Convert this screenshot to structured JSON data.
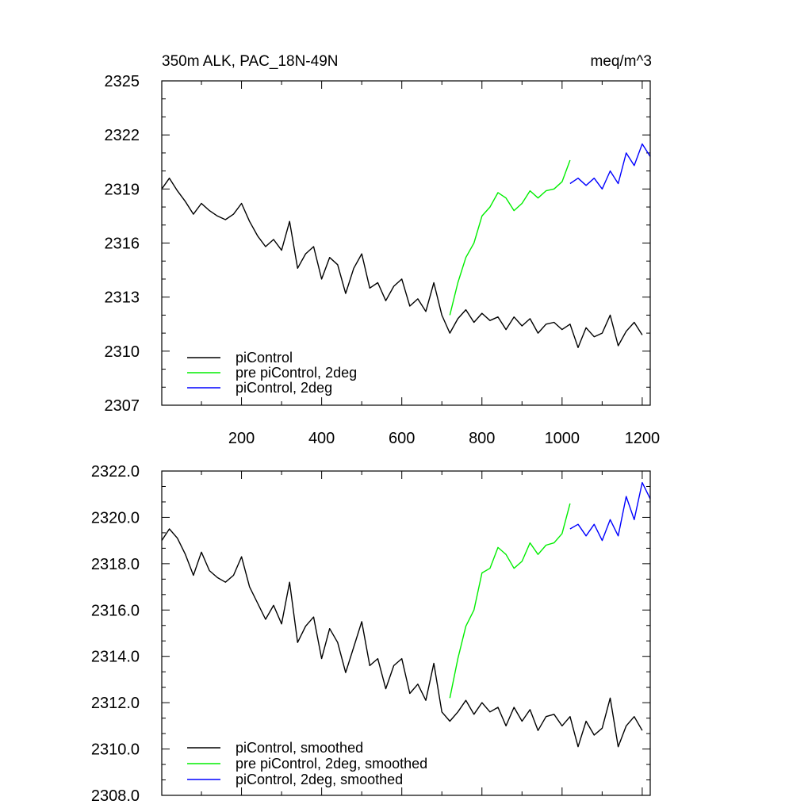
{
  "chart_data": [
    {
      "type": "line",
      "title": "350m ALK, PAC_18N-49N",
      "units": "meq/m^3",
      "xlim": [
        1,
        1220
      ],
      "ylim": [
        2307,
        2325
      ],
      "yticks": [
        2307,
        2310,
        2313,
        2316,
        2319,
        2322,
        2325
      ],
      "ytick_labels": [
        "2307",
        "2310",
        "2313",
        "2316",
        "2319",
        "2322",
        "2325"
      ],
      "xticks": [
        200,
        400,
        600,
        800,
        1000,
        1200
      ],
      "xtick_labels": [
        "200",
        "400",
        "600",
        "800",
        "1000",
        "1200"
      ],
      "legend_position": "bottom-left",
      "series": [
        {
          "name": "piControl",
          "color": "#000000",
          "x": [
            1,
            20,
            40,
            60,
            80,
            100,
            120,
            140,
            160,
            180,
            200,
            220,
            240,
            260,
            280,
            300,
            320,
            340,
            360,
            380,
            400,
            420,
            440,
            460,
            480,
            500,
            520,
            540,
            560,
            580,
            600,
            620,
            640,
            660,
            680,
            700,
            720,
            740,
            760,
            780,
            800,
            820,
            840,
            860,
            880,
            900,
            920,
            940,
            960,
            980,
            1000,
            1020,
            1040,
            1060,
            1080,
            1100,
            1120,
            1140,
            1160,
            1180,
            1200
          ],
          "y": [
            2319.0,
            2319.6,
            2318.9,
            2318.3,
            2317.6,
            2318.2,
            2317.8,
            2317.5,
            2317.3,
            2317.6,
            2318.2,
            2317.2,
            2316.4,
            2315.8,
            2316.2,
            2315.6,
            2317.2,
            2314.6,
            2315.4,
            2315.8,
            2314.0,
            2315.2,
            2314.8,
            2313.2,
            2314.6,
            2315.4,
            2313.5,
            2313.8,
            2312.8,
            2313.6,
            2314.0,
            2312.5,
            2312.9,
            2312.2,
            2313.8,
            2312.0,
            2311.0,
            2311.8,
            2312.3,
            2311.6,
            2312.1,
            2311.7,
            2311.9,
            2311.2,
            2311.9,
            2311.4,
            2311.8,
            2311.0,
            2311.5,
            2311.6,
            2311.2,
            2311.5,
            2310.2,
            2311.3,
            2310.8,
            2311.0,
            2312.0,
            2310.3,
            2311.1,
            2311.6,
            2310.9
          ]
        },
        {
          "name": "pre piControl, 2deg",
          "color": "#00ee00",
          "x": [
            720,
            740,
            760,
            780,
            800,
            820,
            840,
            860,
            880,
            900,
            920,
            940,
            960,
            980,
            1000,
            1020
          ],
          "y": [
            2312.0,
            2313.8,
            2315.2,
            2316.0,
            2317.5,
            2318.0,
            2318.8,
            2318.5,
            2317.8,
            2318.2,
            2318.9,
            2318.5,
            2318.9,
            2319.0,
            2319.4,
            2320.6
          ]
        },
        {
          "name": "piControl, 2deg",
          "color": "#0000ff",
          "x": [
            1020,
            1040,
            1060,
            1080,
            1100,
            1120,
            1140,
            1160,
            1180,
            1200,
            1220
          ],
          "y": [
            2319.3,
            2319.6,
            2319.2,
            2319.6,
            2319.0,
            2320.0,
            2319.3,
            2321.0,
            2320.3,
            2321.5,
            2320.8
          ]
        }
      ]
    },
    {
      "type": "line",
      "xlim": [
        1,
        1220
      ],
      "ylim": [
        2308.0,
        2322.0
      ],
      "yticks": [
        2308,
        2310,
        2312,
        2314,
        2316,
        2318,
        2320,
        2322
      ],
      "ytick_labels": [
        "2308.0",
        "2310.0",
        "2312.0",
        "2314.0",
        "2316.0",
        "2318.0",
        "2320.0",
        "2322.0"
      ],
      "xticks": [
        200,
        400,
        600,
        800,
        1000,
        1200
      ],
      "legend_position": "bottom-left",
      "series": [
        {
          "name": "piControl, smoothed",
          "color": "#000000",
          "x": [
            1,
            20,
            40,
            60,
            80,
            100,
            120,
            140,
            160,
            180,
            200,
            220,
            240,
            260,
            280,
            300,
            320,
            340,
            360,
            380,
            400,
            420,
            440,
            460,
            480,
            500,
            520,
            540,
            560,
            580,
            600,
            620,
            640,
            660,
            680,
            700,
            720,
            740,
            760,
            780,
            800,
            820,
            840,
            860,
            880,
            900,
            920,
            940,
            960,
            980,
            1000,
            1020,
            1040,
            1060,
            1080,
            1100,
            1120,
            1140,
            1160,
            1180,
            1200
          ],
          "y": [
            2319.0,
            2319.5,
            2319.1,
            2318.4,
            2317.5,
            2318.5,
            2317.7,
            2317.4,
            2317.2,
            2317.5,
            2318.3,
            2317.0,
            2316.3,
            2315.6,
            2316.2,
            2315.4,
            2317.2,
            2314.6,
            2315.3,
            2315.7,
            2313.9,
            2315.2,
            2314.6,
            2313.3,
            2314.4,
            2315.5,
            2313.6,
            2313.9,
            2312.6,
            2313.6,
            2313.9,
            2312.4,
            2312.8,
            2312.1,
            2313.7,
            2311.6,
            2311.2,
            2311.6,
            2312.1,
            2311.5,
            2312.0,
            2311.6,
            2311.8,
            2311.0,
            2311.8,
            2311.2,
            2311.7,
            2310.8,
            2311.4,
            2311.5,
            2311.0,
            2311.4,
            2310.1,
            2311.2,
            2310.6,
            2310.9,
            2312.2,
            2310.1,
            2311.0,
            2311.4,
            2310.8
          ]
        },
        {
          "name": "pre piControl, 2deg, smoothed",
          "color": "#00ee00",
          "x": [
            720,
            740,
            760,
            780,
            800,
            820,
            840,
            860,
            880,
            900,
            920,
            940,
            960,
            980,
            1000,
            1020
          ],
          "y": [
            2312.2,
            2313.9,
            2315.3,
            2316.0,
            2317.6,
            2317.8,
            2318.7,
            2318.4,
            2317.8,
            2318.1,
            2318.9,
            2318.4,
            2318.8,
            2318.9,
            2319.3,
            2320.6
          ]
        },
        {
          "name": "piControl, 2deg, smoothed",
          "color": "#0000ff",
          "x": [
            1020,
            1040,
            1060,
            1080,
            1100,
            1120,
            1140,
            1160,
            1180,
            1200,
            1220
          ],
          "y": [
            2319.5,
            2319.7,
            2319.2,
            2319.7,
            2319.0,
            2319.9,
            2319.2,
            2320.9,
            2319.9,
            2321.5,
            2320.8
          ]
        }
      ]
    }
  ]
}
